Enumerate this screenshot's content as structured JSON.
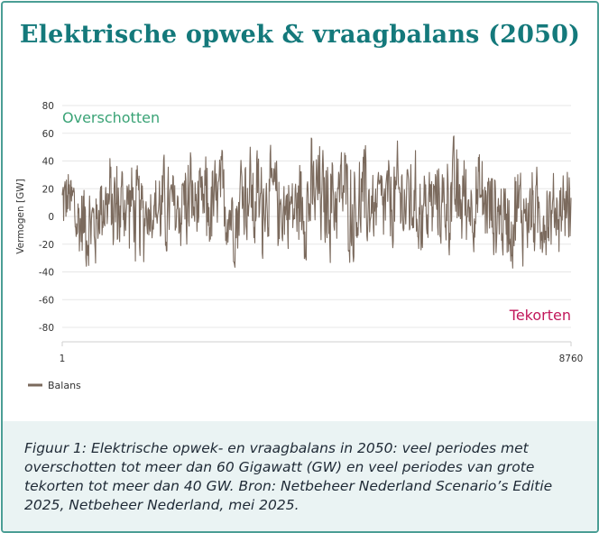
{
  "header": {
    "title": "Elektrische opwek & vraagbalans (2050)"
  },
  "chart_data": {
    "type": "line",
    "ylabel": "Vermogen [GW]",
    "ylim": [
      -80,
      80
    ],
    "yticks": [
      "80",
      "60",
      "40",
      "20",
      "0",
      "-20",
      "-40",
      "-60",
      "-80"
    ],
    "xlim": [
      1,
      8760
    ],
    "xticks": [
      "1",
      "8760"
    ],
    "annotations": {
      "top": "Overschotten",
      "bottom": "Tekorten"
    },
    "series": [
      {
        "name": "Balans",
        "color": "#7b6a5d",
        "approx_range": [
          -50,
          69
        ],
        "envelope_note": "hourly values, dense oscillation between roughly -50 and +69 GW",
        "segment_bounds": [
          [
            -20,
            42
          ],
          [
            -45,
            40
          ],
          [
            -50,
            35
          ],
          [
            -30,
            48
          ],
          [
            -44,
            55
          ],
          [
            -35,
            50
          ],
          [
            -48,
            45
          ],
          [
            -25,
            40
          ],
          [
            -40,
            52
          ],
          [
            -38,
            45
          ],
          [
            -35,
            60
          ],
          [
            -30,
            40
          ],
          [
            -42,
            55
          ],
          [
            -36,
            58
          ],
          [
            -40,
            50
          ],
          [
            -30,
            68
          ],
          [
            -45,
            62
          ],
          [
            -25,
            55
          ],
          [
            -35,
            50
          ],
          [
            -30,
            42
          ],
          [
            -40,
            62
          ],
          [
            -38,
            66
          ],
          [
            -42,
            60
          ],
          [
            -30,
            65
          ],
          [
            -40,
            55
          ],
          [
            -35,
            58
          ],
          [
            -28,
            45
          ],
          [
            -36,
            50
          ],
          [
            -40,
            60
          ],
          [
            -32,
            55
          ],
          [
            -38,
            52
          ],
          [
            -30,
            48
          ],
          [
            -35,
            58
          ],
          [
            -36,
            63
          ],
          [
            -30,
            50
          ],
          [
            -35,
            55
          ],
          [
            -40,
            45
          ],
          [
            -42,
            40
          ],
          [
            -44,
            50
          ],
          [
            -38,
            45
          ],
          [
            -40,
            42
          ],
          [
            -35,
            38
          ],
          [
            -30,
            45
          ]
        ]
      }
    ],
    "legend": {
      "position": "bottom-left"
    }
  },
  "caption": {
    "text": "Figuur 1: Elektrische opwek- en vraagbalans in 2050: veel periodes met overschotten tot meer dan 60 Gigawatt (GW) en veel periodes van grote tekorten tot meer dan 40 GW. Bron: Netbeheer Nederland Scenario’s Editie 2025, Netbeheer Nederland, mei 2025."
  },
  "colors": {
    "title": "#14797b",
    "overschotten": "#3aa376",
    "tekorten": "#c2185b",
    "line": "#7b6a5d",
    "caption_bg": "#eaf3f3",
    "border": "#4b9e95"
  }
}
